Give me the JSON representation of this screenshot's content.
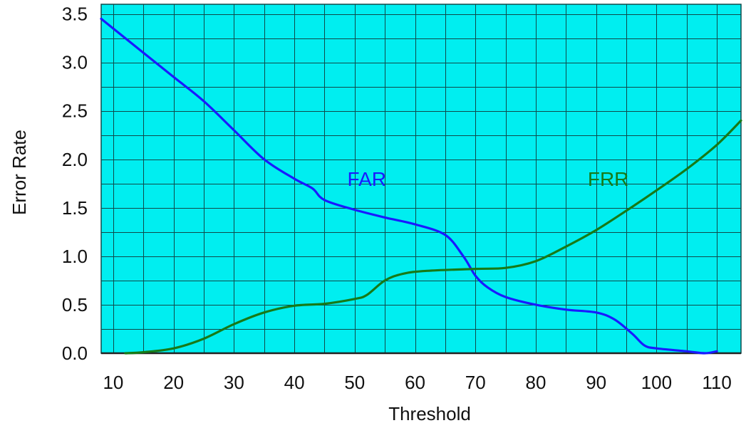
{
  "chart_data": {
    "type": "line",
    "title": "",
    "xlabel": "Threshold",
    "ylabel": "Error Rate",
    "xlim": [
      8,
      114
    ],
    "ylim": [
      0,
      3.6
    ],
    "x_ticks": [
      10,
      20,
      30,
      40,
      50,
      60,
      70,
      80,
      90,
      100,
      110
    ],
    "y_ticks": [
      0.0,
      0.5,
      1.0,
      1.5,
      2.0,
      2.5,
      3.0,
      3.5
    ],
    "y_tick_labels": [
      "0.0",
      "0.5",
      "1.0",
      "1.5",
      "2.0",
      "2.5",
      "3.0",
      "3.5"
    ],
    "grid": true,
    "background_color": "#00eef0",
    "series": [
      {
        "name": "FAR",
        "color": "#1a1aff",
        "points": [
          [
            8,
            3.45
          ],
          [
            10,
            3.35
          ],
          [
            15,
            3.1
          ],
          [
            20,
            2.85
          ],
          [
            25,
            2.6
          ],
          [
            30,
            2.3
          ],
          [
            35,
            2.0
          ],
          [
            40,
            1.8
          ],
          [
            43,
            1.7
          ],
          [
            45,
            1.58
          ],
          [
            50,
            1.48
          ],
          [
            55,
            1.4
          ],
          [
            60,
            1.33
          ],
          [
            65,
            1.22
          ],
          [
            68,
            1.0
          ],
          [
            70,
            0.8
          ],
          [
            72,
            0.68
          ],
          [
            75,
            0.58
          ],
          [
            80,
            0.5
          ],
          [
            85,
            0.45
          ],
          [
            90,
            0.42
          ],
          [
            93,
            0.35
          ],
          [
            96,
            0.2
          ],
          [
            98,
            0.08
          ],
          [
            100,
            0.05
          ],
          [
            105,
            0.02
          ],
          [
            108,
            0.0
          ],
          [
            110,
            0.02
          ]
        ]
      },
      {
        "name": "FRR",
        "color": "#177a17",
        "points": [
          [
            12,
            0.0
          ],
          [
            15,
            0.01
          ],
          [
            20,
            0.05
          ],
          [
            25,
            0.15
          ],
          [
            30,
            0.3
          ],
          [
            35,
            0.42
          ],
          [
            40,
            0.49
          ],
          [
            45,
            0.51
          ],
          [
            50,
            0.56
          ],
          [
            52,
            0.6
          ],
          [
            55,
            0.75
          ],
          [
            58,
            0.82
          ],
          [
            62,
            0.85
          ],
          [
            70,
            0.87
          ],
          [
            75,
            0.88
          ],
          [
            80,
            0.95
          ],
          [
            85,
            1.1
          ],
          [
            90,
            1.27
          ],
          [
            95,
            1.47
          ],
          [
            100,
            1.68
          ],
          [
            105,
            1.9
          ],
          [
            110,
            2.15
          ],
          [
            114,
            2.4
          ]
        ]
      }
    ],
    "annotations": [
      {
        "text": "FAR",
        "x": 52,
        "y": 1.8,
        "color": "#1a1aff"
      },
      {
        "text": "FRR",
        "x": 92,
        "y": 1.8,
        "color": "#177a17"
      }
    ]
  }
}
